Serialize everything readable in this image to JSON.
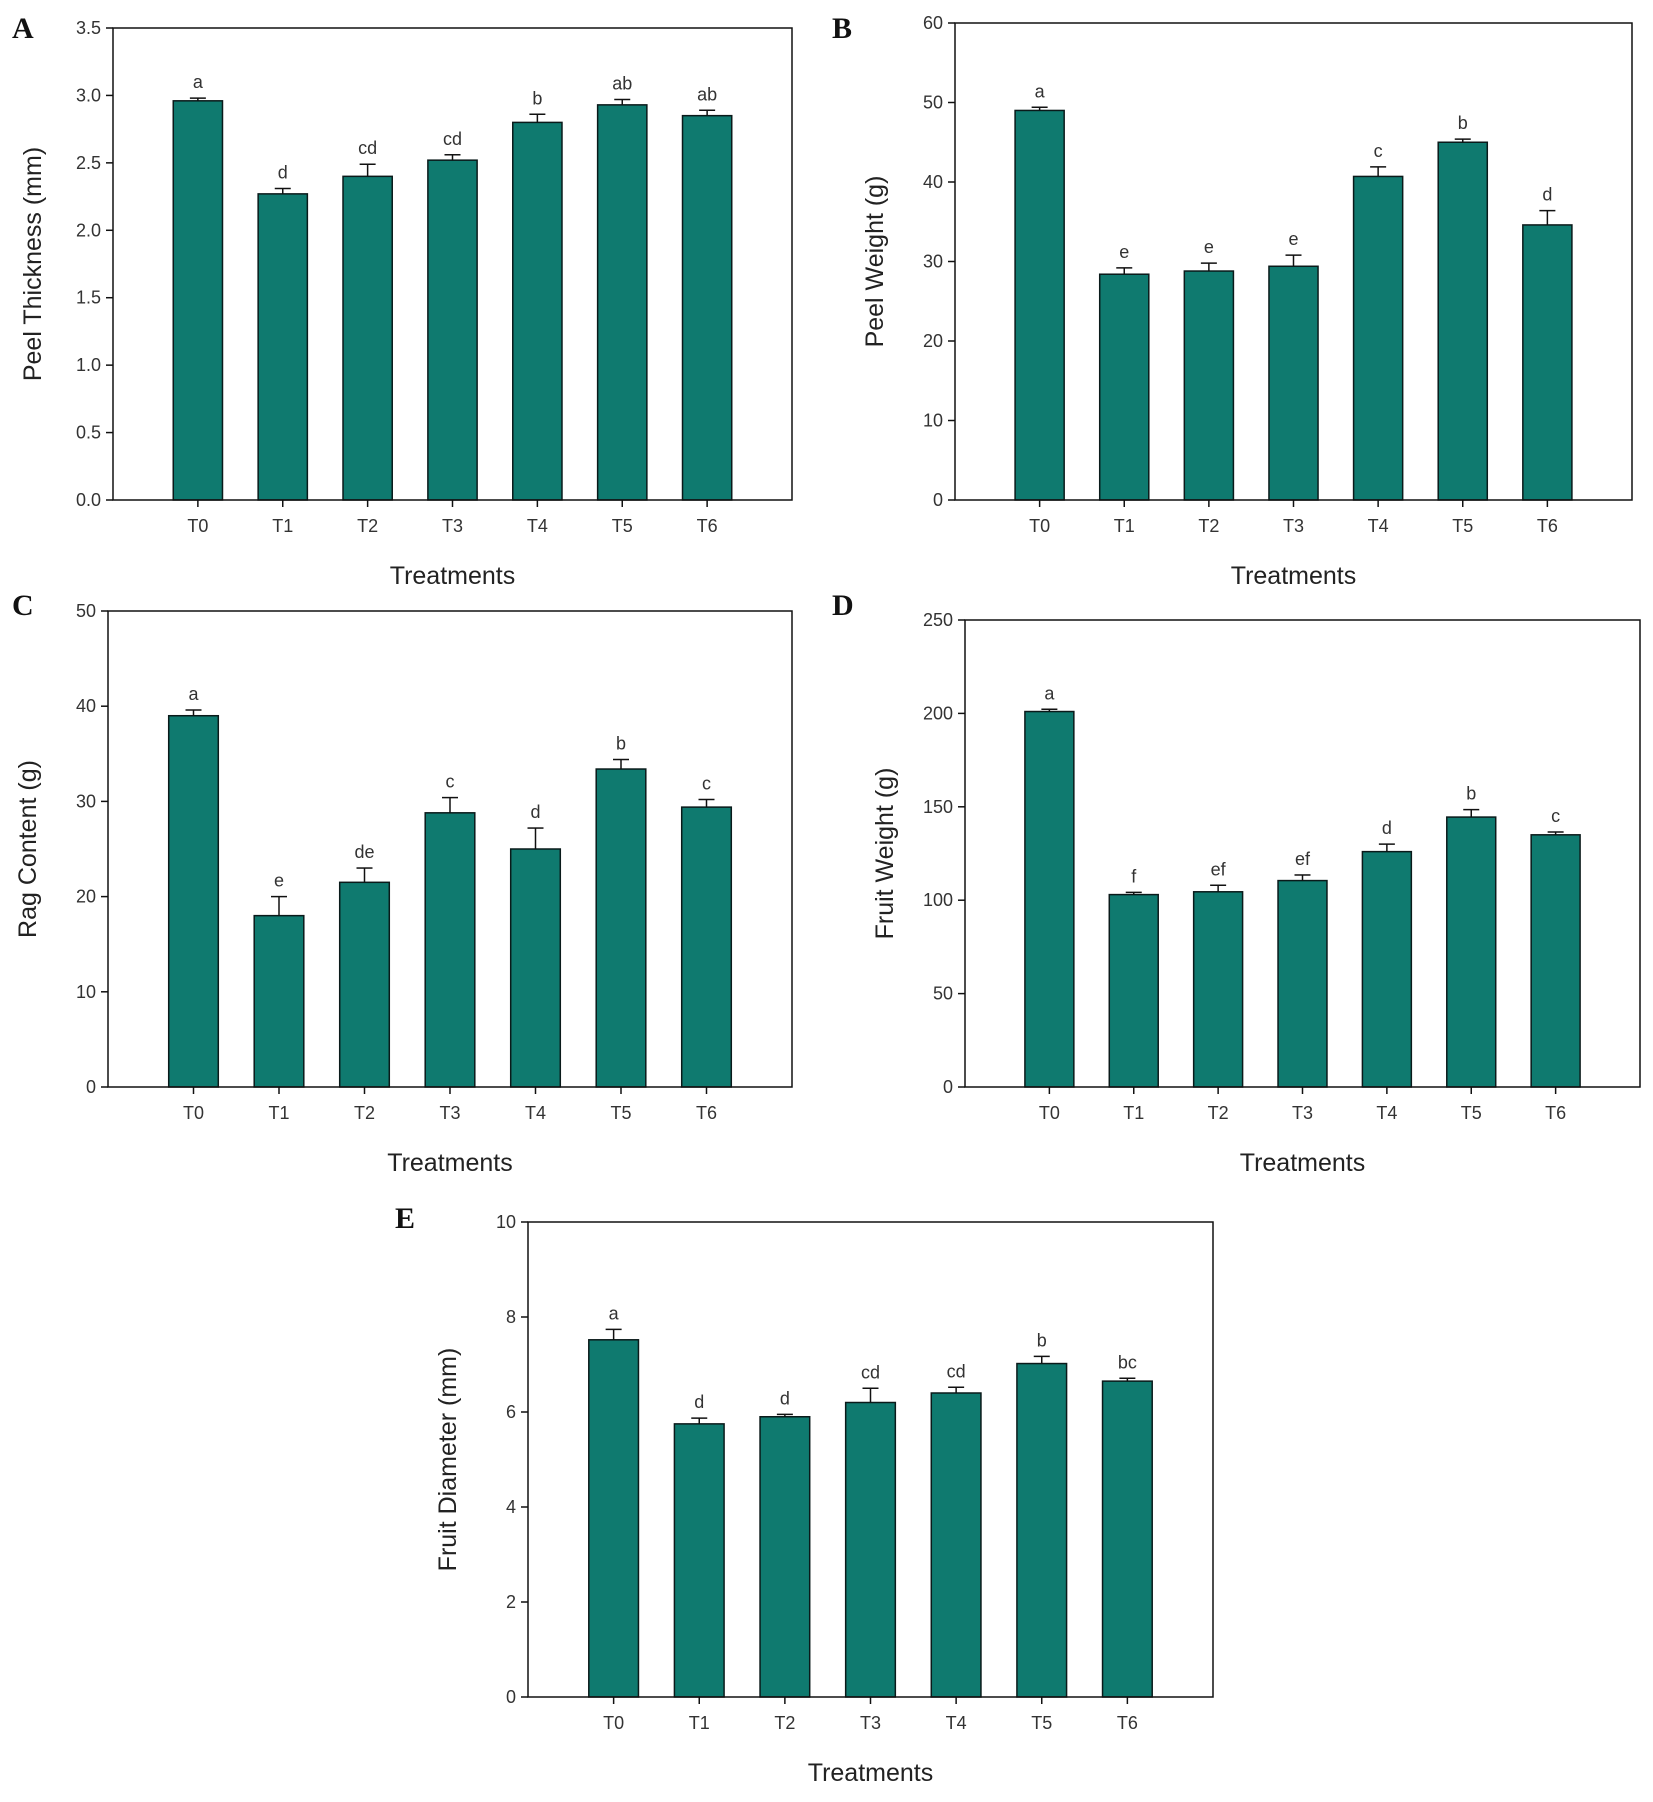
{
  "colors": {
    "bar": "#0f7a6f",
    "axis": "#111111"
  },
  "chart_data": [
    {
      "panel": "A",
      "type": "bar",
      "categories": [
        "T0",
        "T1",
        "T2",
        "T3",
        "T4",
        "T5",
        "T6"
      ],
      "values": [
        2.96,
        2.27,
        2.4,
        2.52,
        2.8,
        2.93,
        2.85
      ],
      "errors": [
        0.02,
        0.04,
        0.09,
        0.04,
        0.06,
        0.04,
        0.04
      ],
      "sig_labels": [
        "a",
        "d",
        "cd",
        "cd",
        "b",
        "ab",
        "ab"
      ],
      "xlabel": "Treatments",
      "ylabel": "Peel Thickness (mm)",
      "ylim": [
        0,
        3.5
      ],
      "yticks": [
        "0.0",
        "0.5",
        "1.0",
        "1.5",
        "2.0",
        "2.5",
        "3.0",
        "3.5"
      ]
    },
    {
      "panel": "B",
      "type": "bar",
      "categories": [
        "T0",
        "T1",
        "T2",
        "T3",
        "T4",
        "T5",
        "T6"
      ],
      "values": [
        49,
        28.4,
        28.8,
        29.4,
        40.7,
        45,
        34.6
      ],
      "errors": [
        0.4,
        0.8,
        1.0,
        1.4,
        1.2,
        0.4,
        1.8
      ],
      "sig_labels": [
        "a",
        "e",
        "e",
        "e",
        "c",
        "b",
        "d"
      ],
      "xlabel": "Treatments",
      "ylabel": "Peel Weight (g)",
      "ylim": [
        0,
        60
      ],
      "yticks": [
        "0",
        "10",
        "20",
        "30",
        "40",
        "50",
        "60"
      ]
    },
    {
      "panel": "C",
      "type": "bar",
      "categories": [
        "T0",
        "T1",
        "T2",
        "T3",
        "T4",
        "T5",
        "T6"
      ],
      "values": [
        39,
        18,
        21.5,
        28.8,
        25,
        33.4,
        29.4
      ],
      "errors": [
        0.6,
        2.0,
        1.5,
        1.6,
        2.2,
        1.0,
        0.8
      ],
      "sig_labels": [
        "a",
        "e",
        "de",
        "c",
        "d",
        "b",
        "c"
      ],
      "xlabel": "Treatments",
      "ylabel": "Rag Content (g)",
      "ylim": [
        0,
        50
      ],
      "yticks": [
        "0",
        "10",
        "20",
        "30",
        "40",
        "50"
      ]
    },
    {
      "panel": "D",
      "type": "bar",
      "categories": [
        "T0",
        "T1",
        "T2",
        "T3",
        "T4",
        "T5",
        "T6"
      ],
      "values": [
        201,
        103,
        104.5,
        110.5,
        126,
        144.5,
        135
      ],
      "errors": [
        1.2,
        1.2,
        3.5,
        3.0,
        4.0,
        4.0,
        1.5
      ],
      "sig_labels": [
        "a",
        "f",
        "ef",
        "ef",
        "d",
        "b",
        "c"
      ],
      "xlabel": "Treatments",
      "ylabel": "Fruit Weight (g)",
      "ylim": [
        0,
        250
      ],
      "yticks": [
        "0",
        "50",
        "100",
        "150",
        "200",
        "250"
      ]
    },
    {
      "panel": "E",
      "type": "bar",
      "categories": [
        "T0",
        "T1",
        "T2",
        "T3",
        "T4",
        "T5",
        "T6"
      ],
      "values": [
        7.52,
        5.75,
        5.9,
        6.2,
        6.4,
        7.02,
        6.65
      ],
      "errors": [
        0.22,
        0.12,
        0.05,
        0.3,
        0.12,
        0.15,
        0.06
      ],
      "sig_labels": [
        "a",
        "d",
        "d",
        "cd",
        "cd",
        "b",
        "bc"
      ],
      "xlabel": "Treatments",
      "ylabel": "Fruit Diameter (mm)",
      "ylim": [
        0,
        10
      ],
      "yticks": [
        "0",
        "2",
        "4",
        "6",
        "8",
        "10"
      ]
    }
  ]
}
